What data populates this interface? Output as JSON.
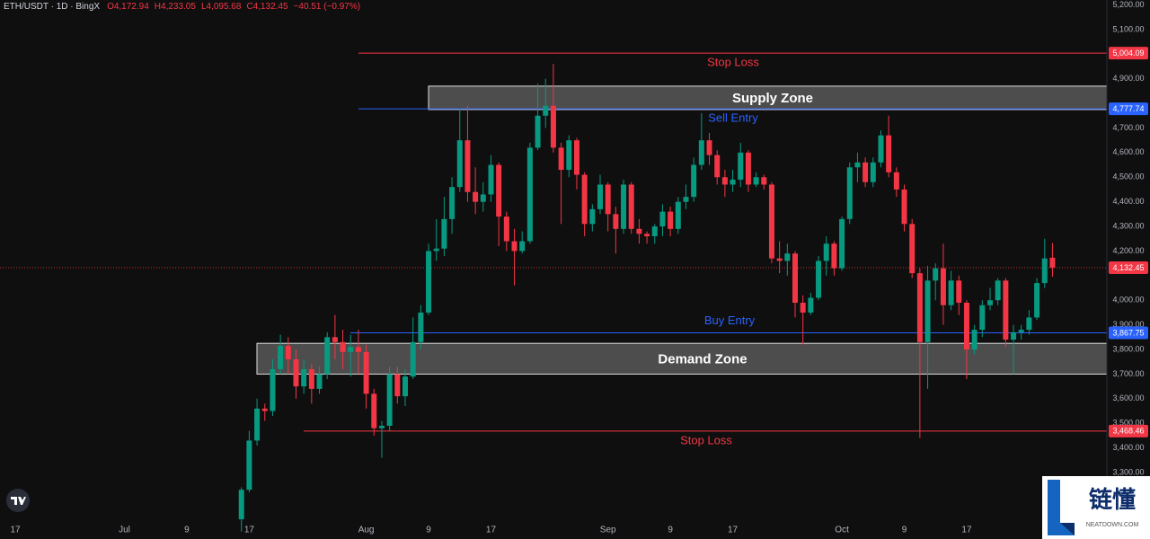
{
  "chart_data": {
    "type": "candlestick",
    "title": "ETH/USDT · 1D · BingX",
    "ohlc_text": [
      "O4,172.94",
      "H4,233.05",
      "L4,095.68",
      "C4,132.45",
      "−40.51 (−0.97%)"
    ],
    "up_color": "#089981",
    "down_color": "#f23645",
    "categories": [
      "17",
      null,
      null,
      null,
      null,
      null,
      null,
      null,
      null,
      null,
      null,
      null,
      null,
      null,
      "Jul",
      null,
      null,
      null,
      null,
      null,
      null,
      null,
      "9",
      null,
      null,
      null,
      null,
      null,
      null,
      null,
      "17",
      null,
      null,
      null,
      null,
      null,
      null,
      null,
      null,
      null,
      null,
      null,
      null,
      null,
      null,
      "Aug",
      null,
      null,
      null,
      null,
      null,
      null,
      null,
      "9",
      null,
      null,
      null,
      null,
      null,
      null,
      null,
      "17",
      null,
      null,
      null,
      null,
      null,
      null,
      null,
      null,
      null,
      null,
      null,
      null,
      null,
      null,
      "Sep",
      null,
      null,
      null,
      null,
      null,
      null,
      null,
      "9",
      null,
      null,
      null,
      null,
      null,
      null,
      null,
      "17",
      null,
      null,
      null,
      null,
      null,
      null,
      null,
      null,
      null,
      null,
      null,
      null,
      null,
      "Oct",
      null,
      null,
      null,
      null,
      null,
      null,
      null,
      "9",
      null,
      null,
      null,
      null,
      null,
      null,
      null,
      "17",
      null,
      null,
      null,
      null,
      null,
      null,
      null,
      null,
      null,
      null,
      null,
      null,
      null,
      null,
      null,
      null,
      null
    ],
    "open": [
      null,
      null,
      null,
      null,
      null,
      null,
      null,
      null,
      null,
      null,
      null,
      null,
      null,
      null,
      null,
      null,
      null,
      null,
      null,
      null,
      null,
      null,
      null,
      null,
      null,
      null,
      null,
      null,
      null,
      3110,
      3230,
      3430,
      3560,
      3550,
      3720,
      3815,
      3760,
      3650,
      3720,
      3640,
      3700,
      3850,
      3830,
      3790,
      3810,
      3790,
      3620,
      3480,
      3490,
      3700,
      3610,
      3690,
      3830,
      3950,
      4200,
      4210,
      4330,
      4460,
      4650,
      4440,
      4400,
      4430,
      4550,
      4340,
      4240,
      4200,
      4240,
      4620,
      4750,
      4790,
      4620,
      4530,
      4650,
      4510,
      4310,
      4370,
      4470,
      4350,
      4290,
      4470,
      4290,
      4270,
      4260,
      4300,
      4360,
      4290,
      4400,
      4420,
      4550,
      4650,
      4590,
      4500,
      4470,
      4490,
      4600,
      4470,
      4500,
      4470,
      4170,
      4160,
      4190,
      3990,
      3950,
      4010,
      4160,
      4230,
      4130,
      4330,
      4540,
      4560,
      4480,
      4560,
      4670,
      4520,
      4450,
      4310,
      4110,
      3830,
      4080,
      4130,
      3980,
      4080,
      3990,
      3800,
      3880,
      3980,
      4000,
      4080,
      3840,
      3870,
      3880,
      3930,
      4070,
      4172.94,
      null,
      null,
      null,
      null,
      null,
      null
    ],
    "high": [
      null,
      null,
      null,
      null,
      null,
      null,
      null,
      null,
      null,
      null,
      null,
      null,
      null,
      null,
      null,
      null,
      null,
      null,
      null,
      null,
      null,
      null,
      null,
      null,
      null,
      null,
      null,
      null,
      null,
      3240,
      3470,
      3600,
      3580,
      3760,
      3860,
      3850,
      3800,
      3760,
      3740,
      3730,
      3870,
      3940,
      3880,
      3860,
      3880,
      3820,
      3640,
      3510,
      3730,
      3730,
      3720,
      3930,
      3980,
      4230,
      4330,
      4420,
      4500,
      4780,
      4790,
      4540,
      4480,
      4590,
      4560,
      4360,
      4290,
      4280,
      4640,
      4880,
      4900,
      4960,
      4640,
      4670,
      4660,
      4520,
      4390,
      4510,
      4480,
      4380,
      4490,
      4480,
      4330,
      4280,
      4310,
      4390,
      4380,
      4420,
      4470,
      4580,
      4760,
      4680,
      4610,
      4530,
      4530,
      4640,
      4610,
      4520,
      4510,
      4480,
      4240,
      4230,
      4200,
      4020,
      4030,
      4180,
      4260,
      4240,
      4340,
      4560,
      4600,
      4580,
      4580,
      4690,
      4750,
      4540,
      4470,
      4330,
      4130,
      4140,
      4150,
      4230,
      4120,
      4100,
      4000,
      3900,
      4000,
      4050,
      4090,
      4090,
      3900,
      3900,
      3960,
      4090,
      4250,
      4233.05,
      null,
      null,
      null,
      null,
      null,
      null
    ],
    "low": [
      null,
      null,
      null,
      null,
      null,
      null,
      null,
      null,
      null,
      null,
      null,
      null,
      null,
      null,
      null,
      null,
      null,
      null,
      null,
      null,
      null,
      null,
      null,
      null,
      null,
      null,
      null,
      null,
      null,
      3060,
      3220,
      3410,
      3510,
      3530,
      3700,
      3700,
      3600,
      3620,
      3580,
      3620,
      3680,
      3760,
      3720,
      3690,
      3700,
      3560,
      3450,
      3360,
      3470,
      3580,
      3570,
      3680,
      3800,
      3940,
      4160,
      4180,
      4270,
      4440,
      4400,
      4350,
      4360,
      4400,
      4220,
      4200,
      4060,
      4190,
      4230,
      4610,
      4700,
      4600,
      4310,
      4500,
      4450,
      4260,
      4280,
      4350,
      4280,
      4190,
      4270,
      4270,
      4230,
      4230,
      4230,
      4260,
      4260,
      4270,
      4370,
      4400,
      4530,
      4550,
      4470,
      4420,
      4440,
      4460,
      4440,
      4460,
      4450,
      4150,
      4110,
      4100,
      3930,
      3820,
      3940,
      4000,
      4100,
      4100,
      4120,
      4310,
      4480,
      4460,
      4460,
      4540,
      4500,
      4420,
      4280,
      4090,
      3440,
      3640,
      4000,
      3900,
      3960,
      3940,
      3680,
      3780,
      3850,
      3960,
      3980,
      3810,
      3700,
      3840,
      3860,
      3920,
      4050,
      4095.68,
      null,
      null,
      null,
      null,
      null,
      null
    ],
    "close": [
      null,
      null,
      null,
      null,
      null,
      null,
      null,
      null,
      null,
      null,
      null,
      null,
      null,
      null,
      null,
      null,
      null,
      null,
      null,
      null,
      null,
      null,
      null,
      null,
      null,
      null,
      null,
      null,
      null,
      3230,
      3430,
      3560,
      3550,
      3720,
      3815,
      3760,
      3650,
      3720,
      3640,
      3700,
      3850,
      3830,
      3790,
      3810,
      3790,
      3620,
      3480,
      3490,
      3700,
      3610,
      3690,
      3830,
      3950,
      4200,
      4210,
      4330,
      4460,
      4650,
      4440,
      4400,
      4430,
      4550,
      4340,
      4240,
      4200,
      4240,
      4620,
      4750,
      4790,
      4620,
      4530,
      4650,
      4510,
      4310,
      4370,
      4470,
      4350,
      4290,
      4470,
      4290,
      4270,
      4260,
      4300,
      4360,
      4290,
      4400,
      4420,
      4550,
      4650,
      4590,
      4500,
      4470,
      4490,
      4600,
      4470,
      4500,
      4470,
      4170,
      4160,
      4190,
      3990,
      3950,
      4010,
      4160,
      4230,
      4130,
      4330,
      4540,
      4560,
      4480,
      4560,
      4670,
      4520,
      4450,
      4310,
      4110,
      3830,
      4080,
      4130,
      3980,
      4080,
      3990,
      3800,
      3880,
      3980,
      4000,
      4080,
      3840,
      3870,
      3880,
      3930,
      4070,
      4170,
      4132.45,
      null,
      null,
      null,
      null,
      null,
      null
    ],
    "ylim": [
      3030,
      5220
    ],
    "yticks": [
      {
        "value": 5200,
        "label": "5,200.00"
      },
      {
        "value": 5100,
        "label": "5,100.00"
      },
      {
        "value": 4900,
        "label": "4,900.00"
      },
      {
        "value": 4700,
        "label": "4,700.00"
      },
      {
        "value": 4600,
        "label": "4,600.00"
      },
      {
        "value": 4500,
        "label": "4,500.00"
      },
      {
        "value": 4400,
        "label": "4,400.00"
      },
      {
        "value": 4300,
        "label": "4,300.00"
      },
      {
        "value": 4200,
        "label": "4,200.00"
      },
      {
        "value": 4000,
        "label": "4,000.00"
      },
      {
        "value": 3900,
        "label": "3,900.00"
      },
      {
        "value": 3800,
        "label": "3,800.00"
      },
      {
        "value": 3700,
        "label": "3,700.00"
      },
      {
        "value": 3600,
        "label": "3,600.00"
      },
      {
        "value": 3500,
        "label": "3,500.00"
      },
      {
        "value": 3400,
        "label": "3,400.00"
      },
      {
        "value": 3300,
        "label": "3,300.00"
      }
    ],
    "last_price": {
      "value": 4132.45,
      "label": "4,132.45"
    },
    "last_price_color": "#f23645",
    "zones": [
      {
        "name": "Supply Zone",
        "top": 4870,
        "bottom": 4775
      },
      {
        "name": "Demand Zone",
        "top": 3825,
        "bottom": 3700
      }
    ],
    "levels": [
      {
        "name": "Stop Loss",
        "price": {
          "value": 5004.09,
          "label": "5,004.09"
        },
        "color": "#f23645"
      },
      {
        "name": "Sell Entry",
        "price": {
          "value": 4777.74,
          "label": "4,777.74"
        },
        "color": "#2962ff"
      },
      {
        "name": "Buy Entry",
        "price": {
          "value": 3867.75,
          "label": "3,867.75"
        },
        "color": "#2962ff"
      },
      {
        "name": "Stop Loss",
        "price": {
          "value": 3468.46,
          "label": "3,468.46"
        },
        "color": "#f23645"
      }
    ]
  },
  "watermark": {
    "logo_text": "链懂",
    "site": "NEATDOWN.COM"
  }
}
